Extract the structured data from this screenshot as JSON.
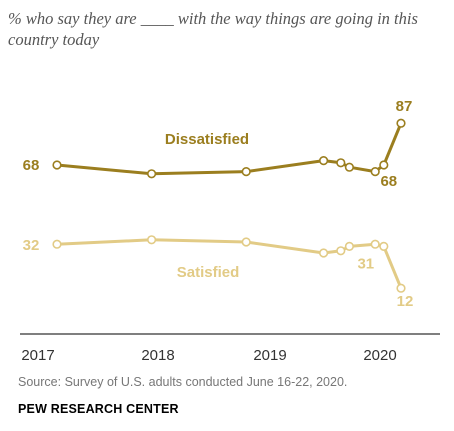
{
  "subtitle": "% who say they are ____ with the way things are going in this country today",
  "source": "Survey of U.S. adults conducted June 16-22, 2020.",
  "organization": "PEW RESEARCH CENTER",
  "colors": {
    "dissatisfied": "#9b7e1f",
    "satisfied": "#e2cb86",
    "axis": "#333333"
  },
  "chart_data": {
    "type": "line",
    "title": "",
    "xlabel": "",
    "ylabel": "",
    "x_ticks": [
      "2017",
      "2018",
      "2019",
      "2020"
    ],
    "xlim": [
      "2017-01",
      "2020-06"
    ],
    "series": [
      {
        "name": "Dissatisfied",
        "color": "#9b7e1f",
        "points": [
          {
            "x": "2017-02",
            "y": 68
          },
          {
            "x": "2018-01",
            "y": 64
          },
          {
            "x": "2018-12",
            "y": 65
          },
          {
            "x": "2019-09",
            "y": 70
          },
          {
            "x": "2019-11",
            "y": 69
          },
          {
            "x": "2019-12",
            "y": 67
          },
          {
            "x": "2020-03",
            "y": 65
          },
          {
            "x": "2020-04",
            "y": 68
          },
          {
            "x": "2020-06",
            "y": 87
          }
        ],
        "labels": [
          "68",
          "68",
          "87"
        ]
      },
      {
        "name": "Satisfied",
        "color": "#e2cb86",
        "points": [
          {
            "x": "2017-02",
            "y": 32
          },
          {
            "x": "2018-01",
            "y": 34
          },
          {
            "x": "2018-12",
            "y": 33
          },
          {
            "x": "2019-09",
            "y": 28
          },
          {
            "x": "2019-11",
            "y": 29
          },
          {
            "x": "2019-12",
            "y": 31
          },
          {
            "x": "2020-03",
            "y": 32
          },
          {
            "x": "2020-04",
            "y": 31
          },
          {
            "x": "2020-06",
            "y": 12
          }
        ],
        "labels": [
          "32",
          "31",
          "12"
        ]
      }
    ]
  }
}
